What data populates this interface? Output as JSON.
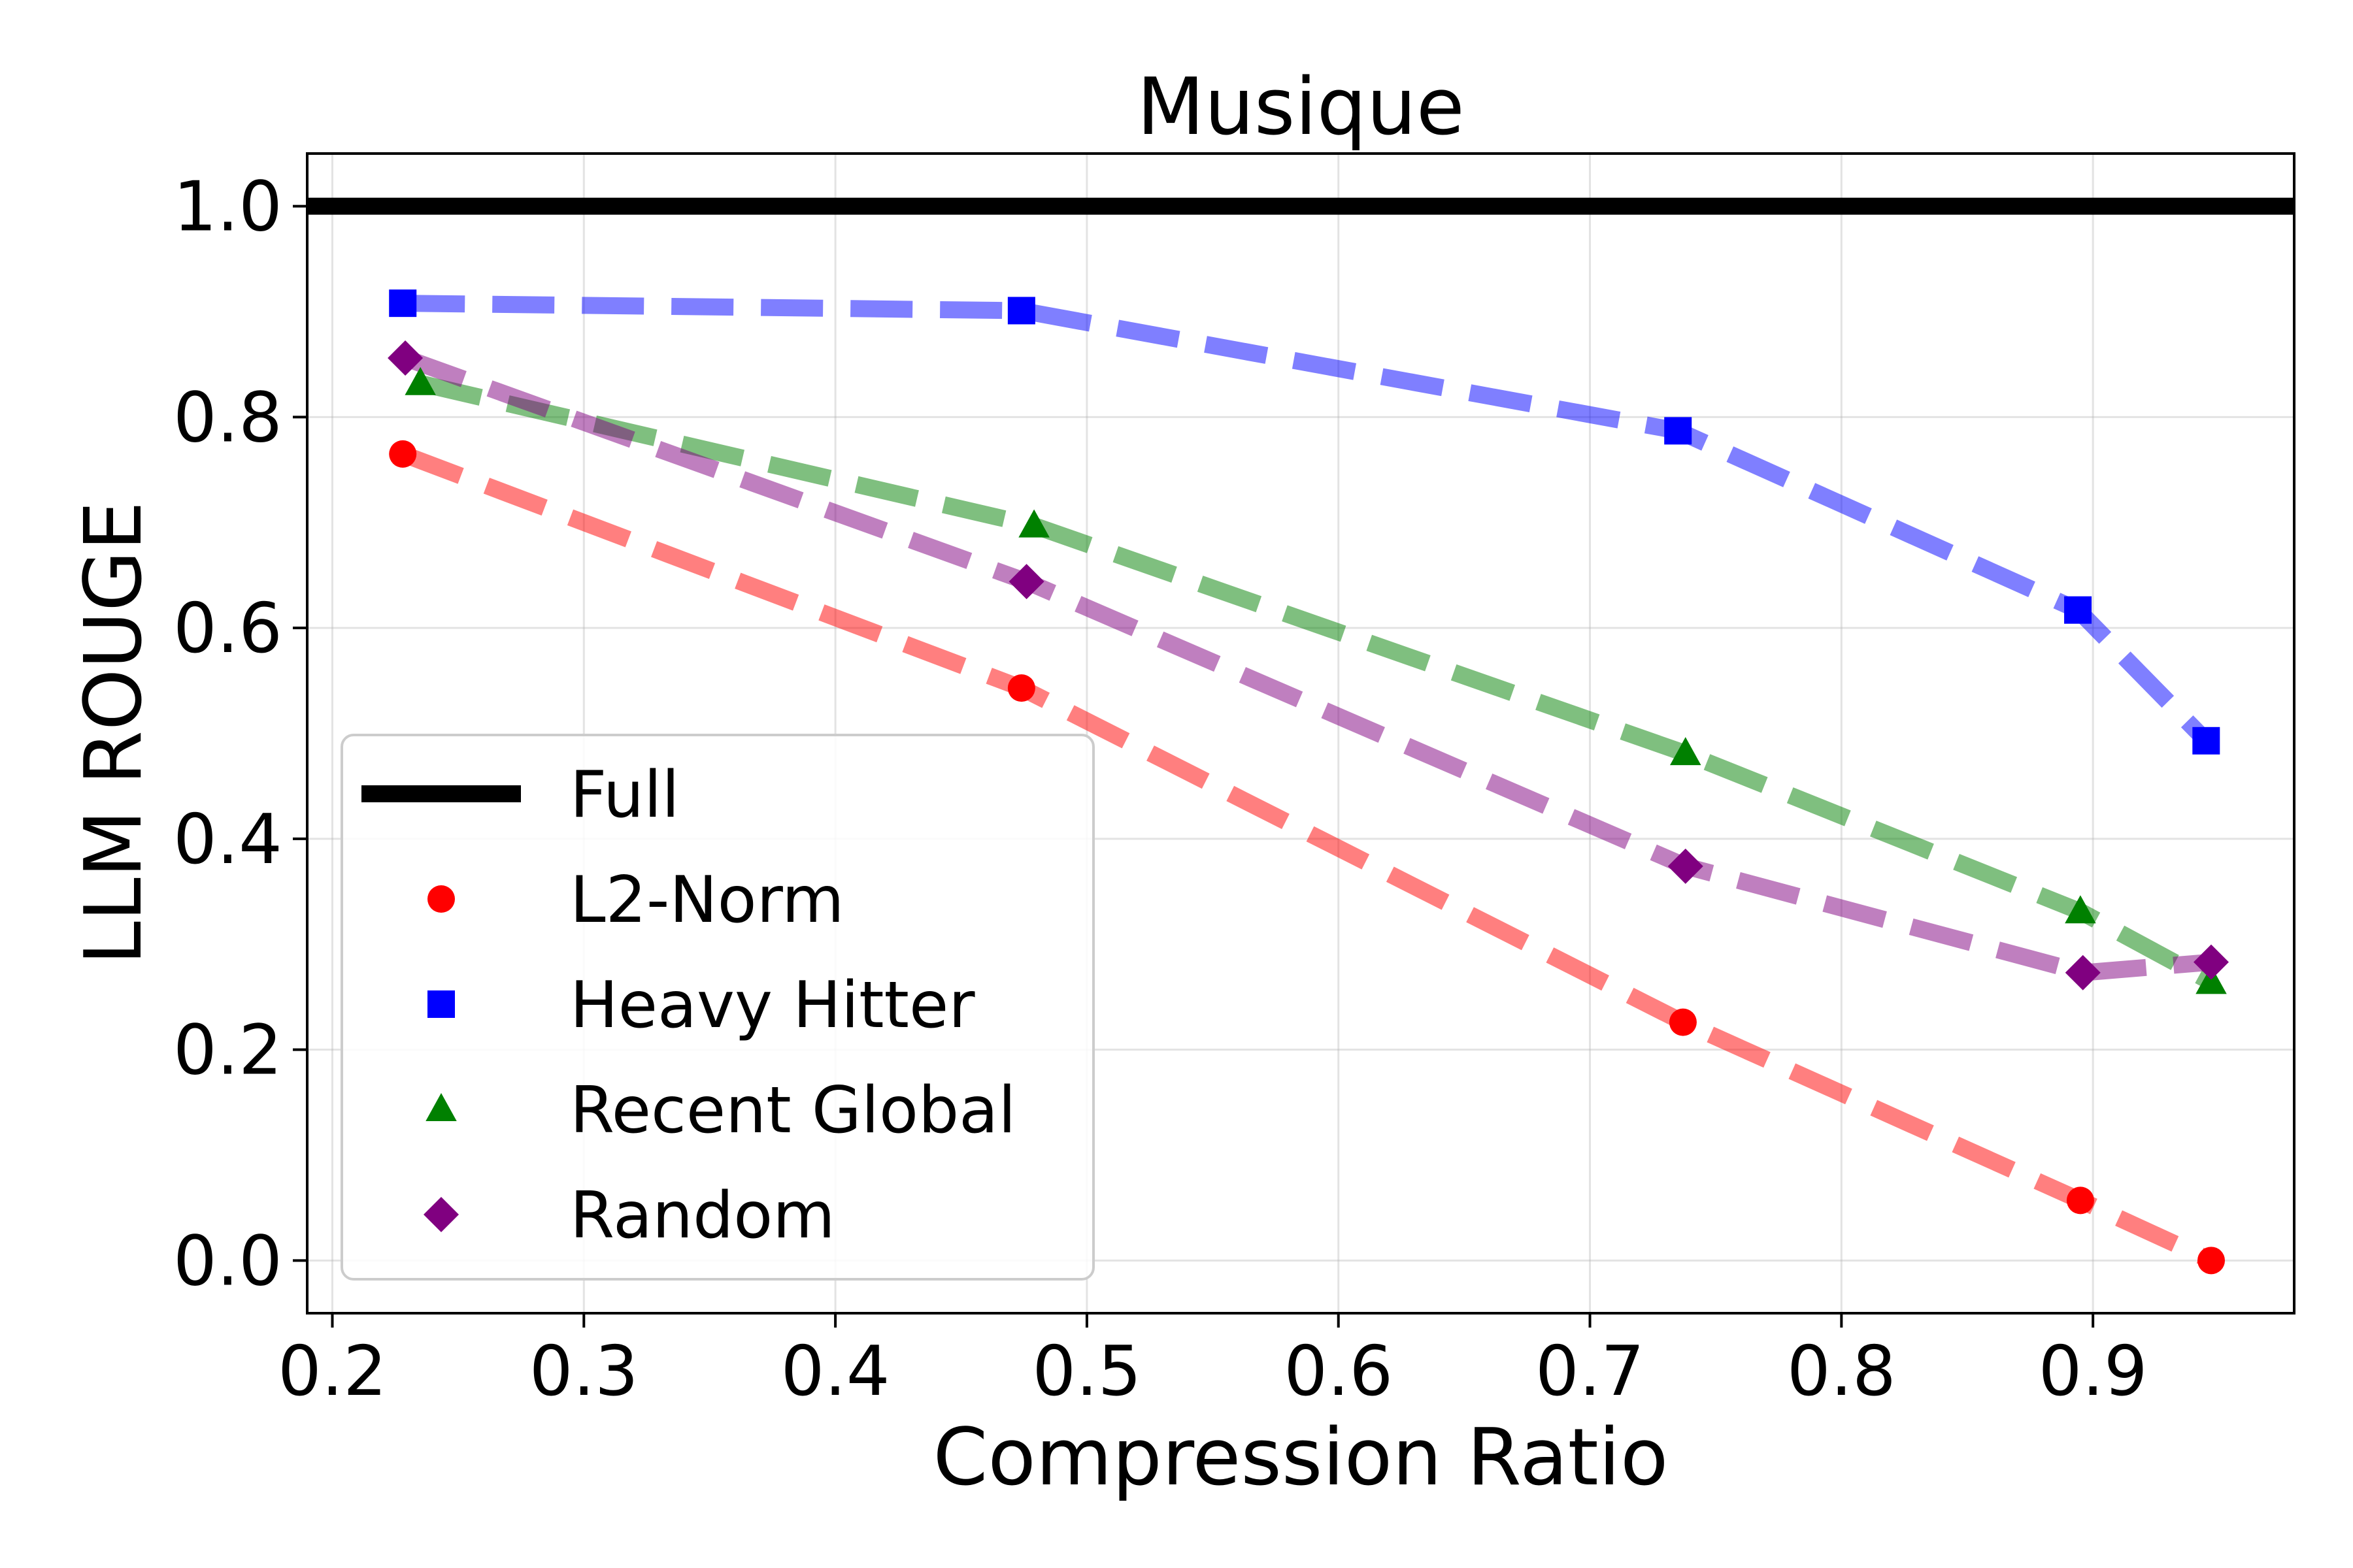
{
  "chart_data": {
    "type": "line",
    "title": "Musique",
    "xlabel": "Compression Ratio",
    "ylabel": "LLM ROUGE",
    "xlim": [
      0.19,
      0.98
    ],
    "ylim": [
      -0.05,
      1.05
    ],
    "xticks": [
      "0.2",
      "0.3",
      "0.4",
      "0.5",
      "0.6",
      "0.7",
      "0.8",
      "0.9"
    ],
    "yticks": [
      "0.0",
      "0.2",
      "0.4",
      "0.6",
      "0.8",
      "1.0"
    ],
    "grid": true,
    "legend_position": "lower-left",
    "reference_line": {
      "name": "Full",
      "y": 1.0,
      "color": "#000000"
    },
    "series": [
      {
        "name": "L2-Norm",
        "marker": "circle",
        "color": "#ff0000",
        "x": [
          0.228,
          0.474,
          0.737,
          0.895,
          0.947
        ],
        "y": [
          0.765,
          0.543,
          0.226,
          0.057,
          0.0
        ]
      },
      {
        "name": "Heavy Hitter",
        "marker": "square",
        "color": "#0000ff",
        "x": [
          0.228,
          0.474,
          0.735,
          0.894,
          0.945
        ],
        "y": [
          0.908,
          0.901,
          0.787,
          0.617,
          0.493
        ]
      },
      {
        "name": "Recent Global",
        "marker": "triangle",
        "color": "#008000",
        "x": [
          0.235,
          0.479,
          0.738,
          0.895,
          0.947
        ],
        "y": [
          0.832,
          0.697,
          0.481,
          0.331,
          0.264
        ]
      },
      {
        "name": "Random",
        "marker": "diamond",
        "color": "#800080",
        "x": [
          0.229,
          0.476,
          0.738,
          0.896,
          0.947
        ],
        "y": [
          0.856,
          0.644,
          0.374,
          0.273,
          0.283
        ]
      }
    ]
  }
}
